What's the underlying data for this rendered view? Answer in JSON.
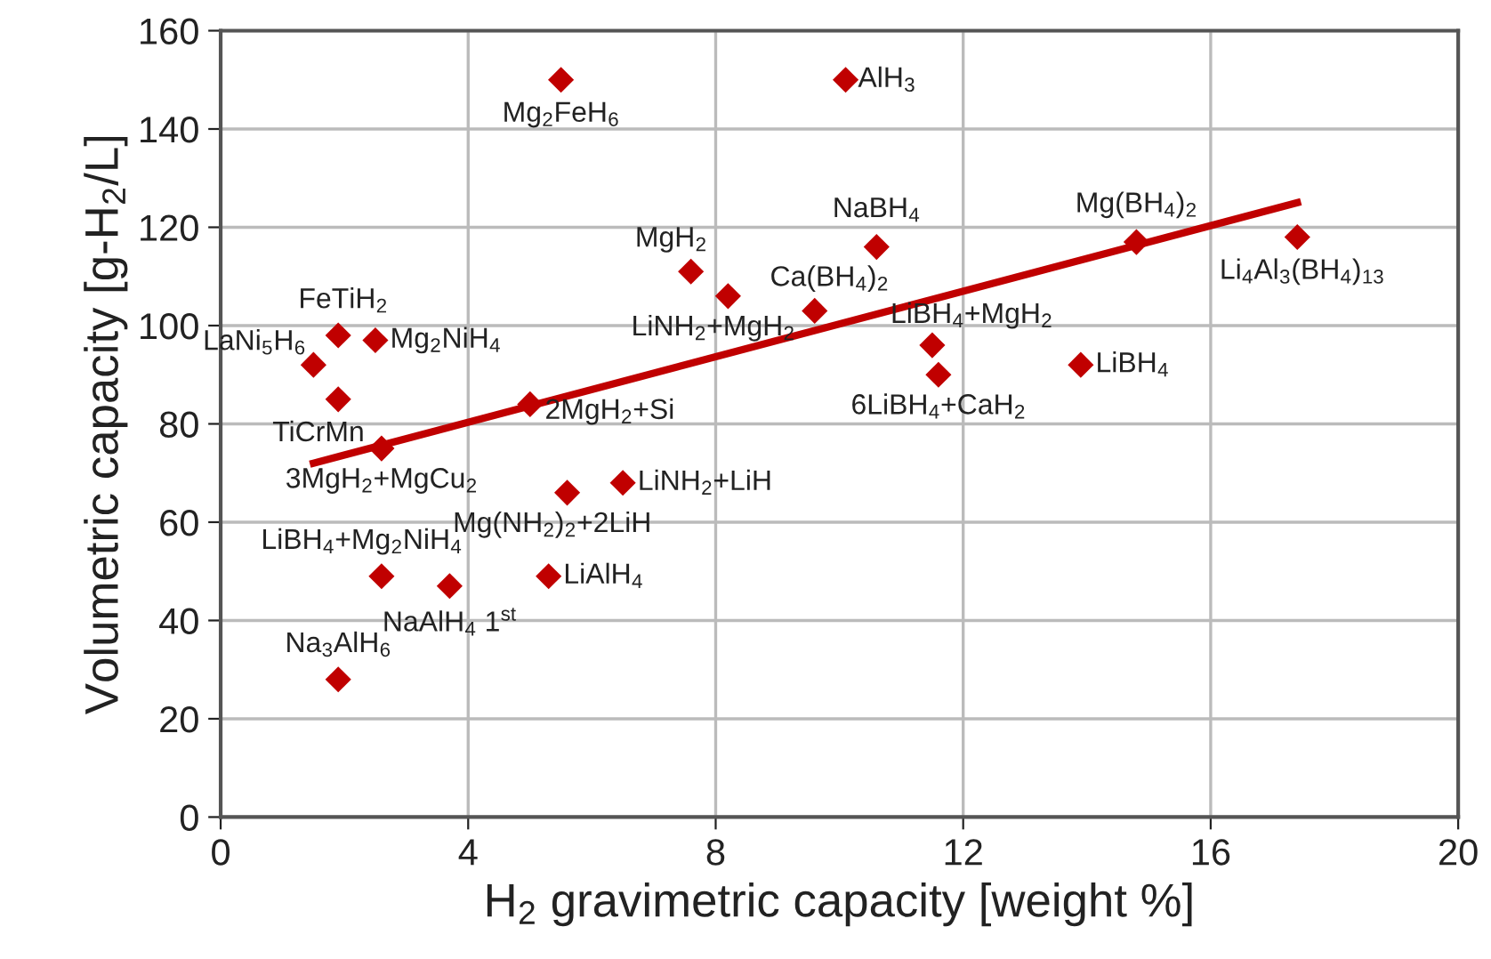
{
  "chart_data": {
    "type": "scatter",
    "xlabel": "H$_{2}$ gravimetric capacity [weight %]",
    "ylabel": "Volumetric capacity [g-H$_{2}$/L]",
    "xlim": [
      0,
      20
    ],
    "xticks": [
      0,
      4,
      8,
      12,
      16,
      20
    ],
    "ylim": [
      0,
      160
    ],
    "yticks": [
      0,
      20,
      40,
      60,
      80,
      100,
      120,
      140,
      160
    ],
    "grid": true,
    "legend": false,
    "series": [
      {
        "color": "#c00000",
        "marker": "diamond",
        "x": [
          5.5,
          10.1,
          7.6,
          8.2,
          9.6,
          10.6,
          14.8,
          17.4,
          11.5,
          11.6,
          13.9,
          1.9,
          1.5,
          2.5,
          1.9,
          5.0,
          2.6,
          5.6,
          6.5,
          2.6,
          3.7,
          5.3,
          1.9
        ],
        "values": [
          150,
          150,
          111,
          106,
          103,
          116,
          117,
          118,
          96,
          90,
          92,
          98,
          92,
          97,
          85,
          84,
          75,
          66,
          68,
          49,
          47,
          49,
          28
        ]
      },
      {
        "type": "line",
        "color": "#c00000",
        "marker": "none",
        "line_style": "solid",
        "x": [
          1.5,
          17.4
        ],
        "values": [
          72,
          125
        ]
      }
    ],
    "annotations": [
      {
        "text": "Mg$_{2}$FeH$_{6}$",
        "x": 5.5,
        "y": 150
      },
      {
        "text": "AlH$_{3}$",
        "x": 10.1,
        "y": 150
      },
      {
        "text": "MgH$_{2}$",
        "x": 7.6,
        "y": 111
      },
      {
        "text": "LiNH$_{2}$+MgH$_{2}$",
        "x": 8.2,
        "y": 106
      },
      {
        "text": "Ca(BH$_{4}$)$_{2}$",
        "x": 9.6,
        "y": 103
      },
      {
        "text": "NaBH$_{4}$",
        "x": 10.6,
        "y": 116
      },
      {
        "text": "Mg(BH$_{4}$)$_{2}$",
        "x": 14.8,
        "y": 117
      },
      {
        "text": "Li$_{4}$Al$_{3}$(BH$_{4}$)$_{13}$",
        "x": 17.4,
        "y": 118
      },
      {
        "text": "LiBH$_{4}$+MgH$_{2}$",
        "x": 11.5,
        "y": 96
      },
      {
        "text": "6LiBH$_{4}$+CaH$_{2}$",
        "x": 11.6,
        "y": 90
      },
      {
        "text": "LiBH$_{4}$",
        "x": 13.9,
        "y": 92
      },
      {
        "text": "FeTiH$_{2}$",
        "x": 1.9,
        "y": 98
      },
      {
        "text": "LaNi$_{5}$H$_{6}$",
        "x": 1.5,
        "y": 92
      },
      {
        "text": "Mg$_{2}$NiH$_{4}$",
        "x": 2.5,
        "y": 97
      },
      {
        "text": "TiCrMn",
        "x": 1.9,
        "y": 85
      },
      {
        "text": "2MgH$_{2}$+Si",
        "x": 5.0,
        "y": 84
      },
      {
        "text": "3MgH$_{2}$+MgCu$_{2}$",
        "x": 2.6,
        "y": 75
      },
      {
        "text": "Mg(NH$_{2}$)$_{2}$+2LiH",
        "x": 5.6,
        "y": 66
      },
      {
        "text": "LiNH$_{2}$+LiH",
        "x": 6.5,
        "y": 68
      },
      {
        "text": "LiBH$_{4}$+Mg$_{2}$NiH$_{4}$",
        "x": 2.6,
        "y": 49
      },
      {
        "text": "NaAlH$_{4}$ 1$^{st}$",
        "x": 3.7,
        "y": 47
      },
      {
        "text": "LiAlH$_{4}$",
        "x": 5.3,
        "y": 49
      },
      {
        "text": "Na$_{3}$AlH$_{6}$",
        "x": 1.9,
        "y": 28
      }
    ]
  }
}
